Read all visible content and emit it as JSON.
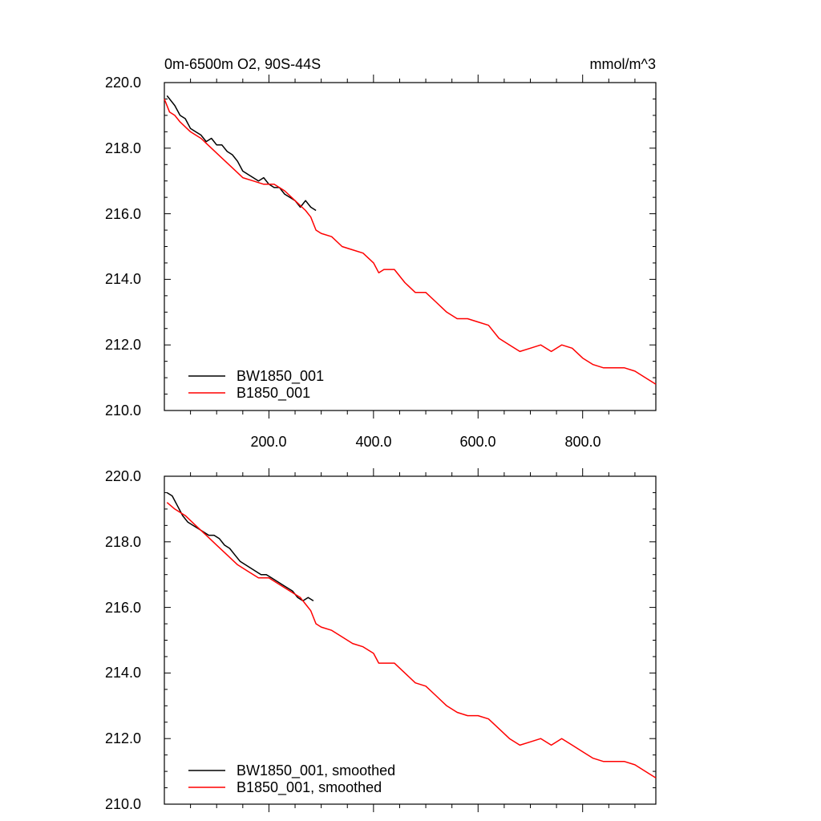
{
  "colors": {
    "black": "#000000",
    "red": "#ff0000"
  },
  "chart_data": [
    {
      "type": "line",
      "title": "0m-6500m O2, 90S-44S",
      "units": "mmol/m^3",
      "xlim": [
        0,
        940
      ],
      "ylim": [
        210,
        220
      ],
      "yticks": [
        "220.0",
        "218.0",
        "216.0",
        "214.0",
        "212.0",
        "210.0"
      ],
      "xticks": [
        "200.0",
        "400.0",
        "600.0",
        "800.0"
      ],
      "legend_position": "bottom-left",
      "series": [
        {
          "name": "BW1850_001",
          "color": "#000000",
          "x": [
            5,
            20,
            30,
            40,
            50,
            60,
            70,
            80,
            90,
            100,
            110,
            120,
            130,
            140,
            150,
            160,
            170,
            180,
            190,
            200,
            210,
            220,
            230,
            240,
            250,
            260,
            270,
            280,
            290
          ],
          "y": [
            219.6,
            219.3,
            219.0,
            218.9,
            218.6,
            218.5,
            218.4,
            218.2,
            218.3,
            218.1,
            218.1,
            217.9,
            217.8,
            217.6,
            217.3,
            217.2,
            217.1,
            217.0,
            217.1,
            216.9,
            216.8,
            216.8,
            216.6,
            216.5,
            216.4,
            216.2,
            216.4,
            216.2,
            216.1
          ]
        },
        {
          "name": "B1850_001",
          "color": "#ff0000",
          "x": [
            0,
            10,
            20,
            30,
            50,
            70,
            90,
            110,
            130,
            150,
            170,
            190,
            210,
            230,
            250,
            270,
            280,
            290,
            300,
            320,
            340,
            360,
            380,
            400,
            410,
            420,
            440,
            460,
            480,
            500,
            520,
            540,
            560,
            580,
            600,
            620,
            640,
            660,
            680,
            700,
            720,
            740,
            760,
            780,
            800,
            820,
            840,
            860,
            880,
            900,
            920,
            940
          ],
          "y": [
            219.5,
            219.1,
            219.0,
            218.8,
            218.5,
            218.3,
            218.0,
            217.7,
            217.4,
            217.1,
            217.0,
            216.9,
            216.9,
            216.7,
            216.4,
            216.1,
            215.9,
            215.5,
            215.4,
            215.3,
            215.0,
            214.9,
            214.8,
            214.5,
            214.2,
            214.3,
            214.3,
            213.9,
            213.6,
            213.6,
            213.3,
            213.0,
            212.8,
            212.8,
            212.7,
            212.6,
            212.2,
            212.0,
            211.8,
            211.9,
            212.0,
            211.8,
            212.0,
            211.9,
            211.6,
            211.4,
            211.3,
            211.3,
            211.3,
            211.2,
            211.0,
            210.8
          ]
        }
      ]
    },
    {
      "type": "line",
      "title": "",
      "xlim": [
        0,
        940
      ],
      "ylim": [
        210,
        220
      ],
      "yticks": [
        "220.0",
        "218.0",
        "216.0",
        "214.0",
        "212.0",
        "210.0"
      ],
      "legend_position": "bottom-left",
      "series": [
        {
          "name": "BW1850_001, smoothed",
          "color": "#000000",
          "x": [
            5,
            15,
            25,
            35,
            45,
            55,
            65,
            75,
            85,
            95,
            105,
            115,
            125,
            135,
            145,
            155,
            165,
            175,
            185,
            195,
            205,
            215,
            225,
            235,
            245,
            255,
            265,
            275,
            285
          ],
          "y": [
            219.5,
            219.4,
            219.1,
            218.8,
            218.6,
            218.5,
            218.4,
            218.3,
            218.2,
            218.2,
            218.1,
            217.9,
            217.8,
            217.6,
            217.4,
            217.3,
            217.2,
            217.1,
            217.0,
            217.0,
            216.9,
            216.8,
            216.7,
            216.6,
            216.5,
            216.3,
            216.2,
            216.3,
            216.2
          ]
        },
        {
          "name": "B1850_001, smoothed",
          "color": "#ff0000",
          "x": [
            5,
            20,
            40,
            60,
            80,
            100,
            120,
            140,
            160,
            180,
            200,
            220,
            240,
            260,
            280,
            290,
            300,
            320,
            340,
            360,
            380,
            400,
            410,
            420,
            440,
            460,
            480,
            500,
            520,
            540,
            560,
            580,
            600,
            620,
            640,
            660,
            680,
            700,
            720,
            740,
            760,
            780,
            800,
            820,
            840,
            860,
            880,
            900,
            920,
            940
          ],
          "y": [
            219.2,
            219.0,
            218.8,
            218.5,
            218.2,
            217.9,
            217.6,
            217.3,
            217.1,
            216.9,
            216.9,
            216.7,
            216.5,
            216.3,
            215.9,
            215.5,
            215.4,
            215.3,
            215.1,
            214.9,
            214.8,
            214.6,
            214.3,
            214.3,
            214.3,
            214.0,
            213.7,
            213.6,
            213.3,
            213.0,
            212.8,
            212.7,
            212.7,
            212.6,
            212.3,
            212.0,
            211.8,
            211.9,
            212.0,
            211.8,
            212.0,
            211.8,
            211.6,
            211.4,
            211.3,
            211.3,
            211.3,
            211.2,
            211.0,
            210.8
          ]
        }
      ]
    }
  ]
}
